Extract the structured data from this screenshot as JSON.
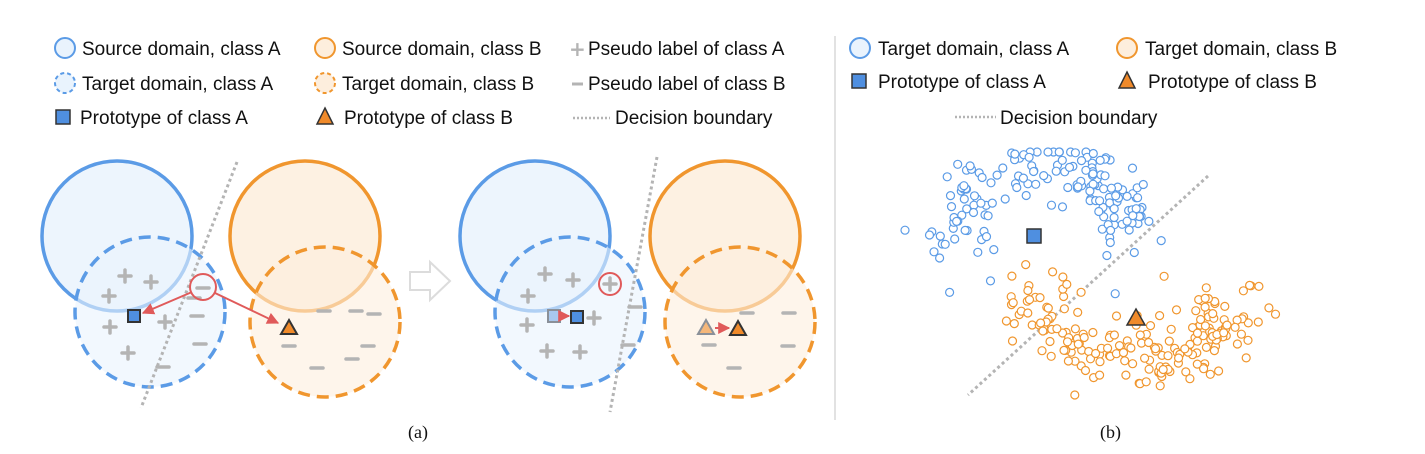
{
  "legend_a": {
    "source_a": "Source domain, class A",
    "source_b": "Source domain, class B",
    "pseudo_a": "Pseudo label of class A",
    "target_a": "Target domain, class A",
    "target_b": "Target domain, class B",
    "pseudo_b": "Pseudo label of class B",
    "proto_a": "Prototype of class A",
    "proto_b": "Prototype of class B",
    "boundary": "Decision boundary"
  },
  "legend_b": {
    "target_a": "Target domain, class A",
    "target_b": "Target domain, class B",
    "proto_a": "Prototype of class A",
    "proto_b": "Prototype of class B",
    "boundary": "Decision boundary"
  },
  "captions": {
    "a": "(a)",
    "b": "(b)"
  },
  "colors": {
    "blue": "#5b9be6",
    "blue_fill": "#e9f3fd",
    "orange": "#f0962e",
    "orange_fill": "#fdeedd",
    "gray": "#b4b4b4",
    "red": "#e05a5a",
    "proto_a": "#4f8fe0",
    "proto_b": "#f08a2a"
  }
}
